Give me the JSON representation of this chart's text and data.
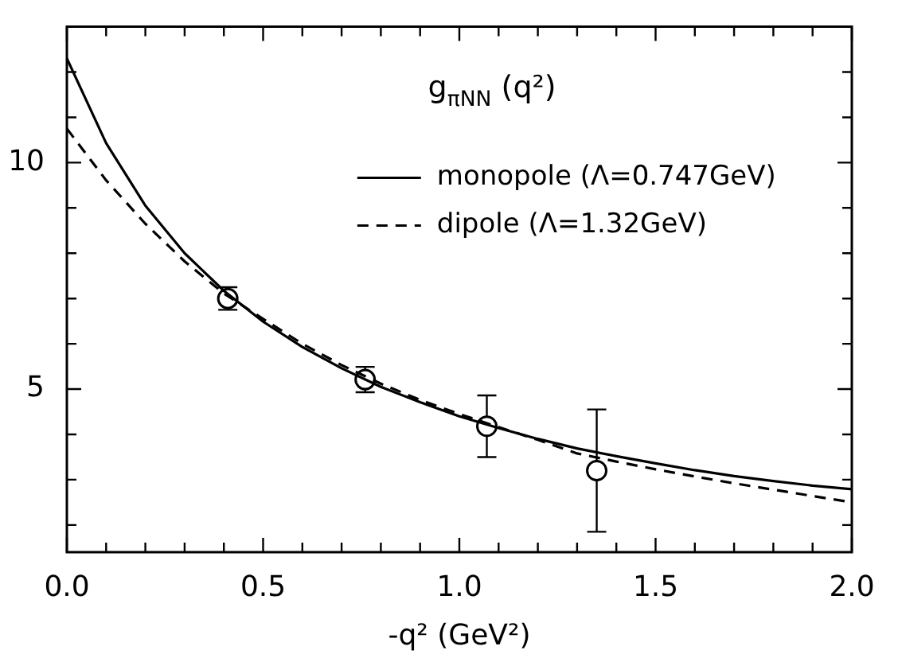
{
  "chart_data": {
    "type": "line",
    "title": "g$_{πNN}$ (q²)",
    "xlabel": "-q² (GeV²)",
    "xlim": [
      0,
      2
    ],
    "ylim": [
      1.4,
      13
    ],
    "xticks": [
      {
        "value": 0,
        "label": "0.0"
      },
      {
        "value": 0.1,
        "label": null
      },
      {
        "value": 0.2,
        "label": null
      },
      {
        "value": 0.3,
        "label": null
      },
      {
        "value": 0.4,
        "label": null
      },
      {
        "value": 0.5,
        "label": "0.5"
      },
      {
        "value": 0.6,
        "label": null
      },
      {
        "value": 0.7,
        "label": null
      },
      {
        "value": 0.8,
        "label": null
      },
      {
        "value": 0.9,
        "label": null
      },
      {
        "value": 1,
        "label": "1.0"
      },
      {
        "value": 1.1,
        "label": null
      },
      {
        "value": 1.2,
        "label": null
      },
      {
        "value": 1.3,
        "label": null
      },
      {
        "value": 1.4,
        "label": null
      },
      {
        "value": 1.5,
        "label": "1.5"
      },
      {
        "value": 1.6,
        "label": null
      },
      {
        "value": 1.7,
        "label": null
      },
      {
        "value": 1.8,
        "label": null
      },
      {
        "value": 1.9,
        "label": null
      },
      {
        "value": 2,
        "label": "2.0"
      }
    ],
    "yticks": [
      {
        "value": 2,
        "label": null
      },
      {
        "value": 3,
        "label": null
      },
      {
        "value": 4,
        "label": null
      },
      5,
      {
        "value": 6,
        "label": null
      },
      {
        "value": 7,
        "label": null
      },
      {
        "value": 8,
        "label": null
      },
      {
        "value": 9,
        "label": null
      },
      10,
      {
        "value": 11,
        "label": null
      },
      {
        "value": 12,
        "label": null
      },
      {
        "value": 13,
        "label": null
      }
    ],
    "grid": false,
    "legend": "top right",
    "series": [
      {
        "name": "monopole (Λ=0.747GeV)",
        "color": "#000000",
        "line_style": "solid",
        "marker": "none",
        "x": [
          0,
          0.1,
          0.2,
          0.3,
          0.4,
          0.5,
          0.6,
          0.7,
          0.8,
          0.9,
          1,
          1.1,
          1.2,
          1.3,
          1.4,
          1.5,
          1.6,
          1.7,
          1.8,
          1.9,
          2
        ],
        "values": [
          12.3,
          10.43,
          9.05,
          8.0,
          7.17,
          6.49,
          5.93,
          5.46,
          5.05,
          4.71,
          4.4,
          4.14,
          3.9,
          3.69,
          3.52,
          3.36,
          3.21,
          3.08,
          2.97,
          2.87,
          2.79
        ]
      },
      {
        "name": "dipole (Λ=1.32GeV)",
        "color": "#000000",
        "line_style": "dashed",
        "marker": "none",
        "x": [
          0,
          0.1,
          0.2,
          0.3,
          0.4,
          0.5,
          0.6,
          0.7,
          0.8,
          0.9,
          1,
          1.1,
          1.2,
          1.3,
          1.4,
          1.5,
          1.6,
          1.7,
          1.8,
          1.9,
          2
        ],
        "values": [
          10.75,
          9.61,
          8.65,
          7.82,
          7.11,
          6.55,
          6.0,
          5.53,
          5.12,
          4.76,
          4.45,
          4.16,
          3.88,
          3.58,
          3.4,
          3.23,
          3.07,
          2.92,
          2.78,
          2.64,
          2.5
        ]
      },
      {
        "type": "scatter",
        "color": "#000000",
        "marker": "circle",
        "x": [
          0.41,
          0.76,
          1.07,
          1.35
        ],
        "values": [
          7.0,
          5.21,
          4.18,
          3.2
        ],
        "errors": [
          0.25,
          0.28,
          0.68,
          1.35
        ]
      }
    ]
  }
}
